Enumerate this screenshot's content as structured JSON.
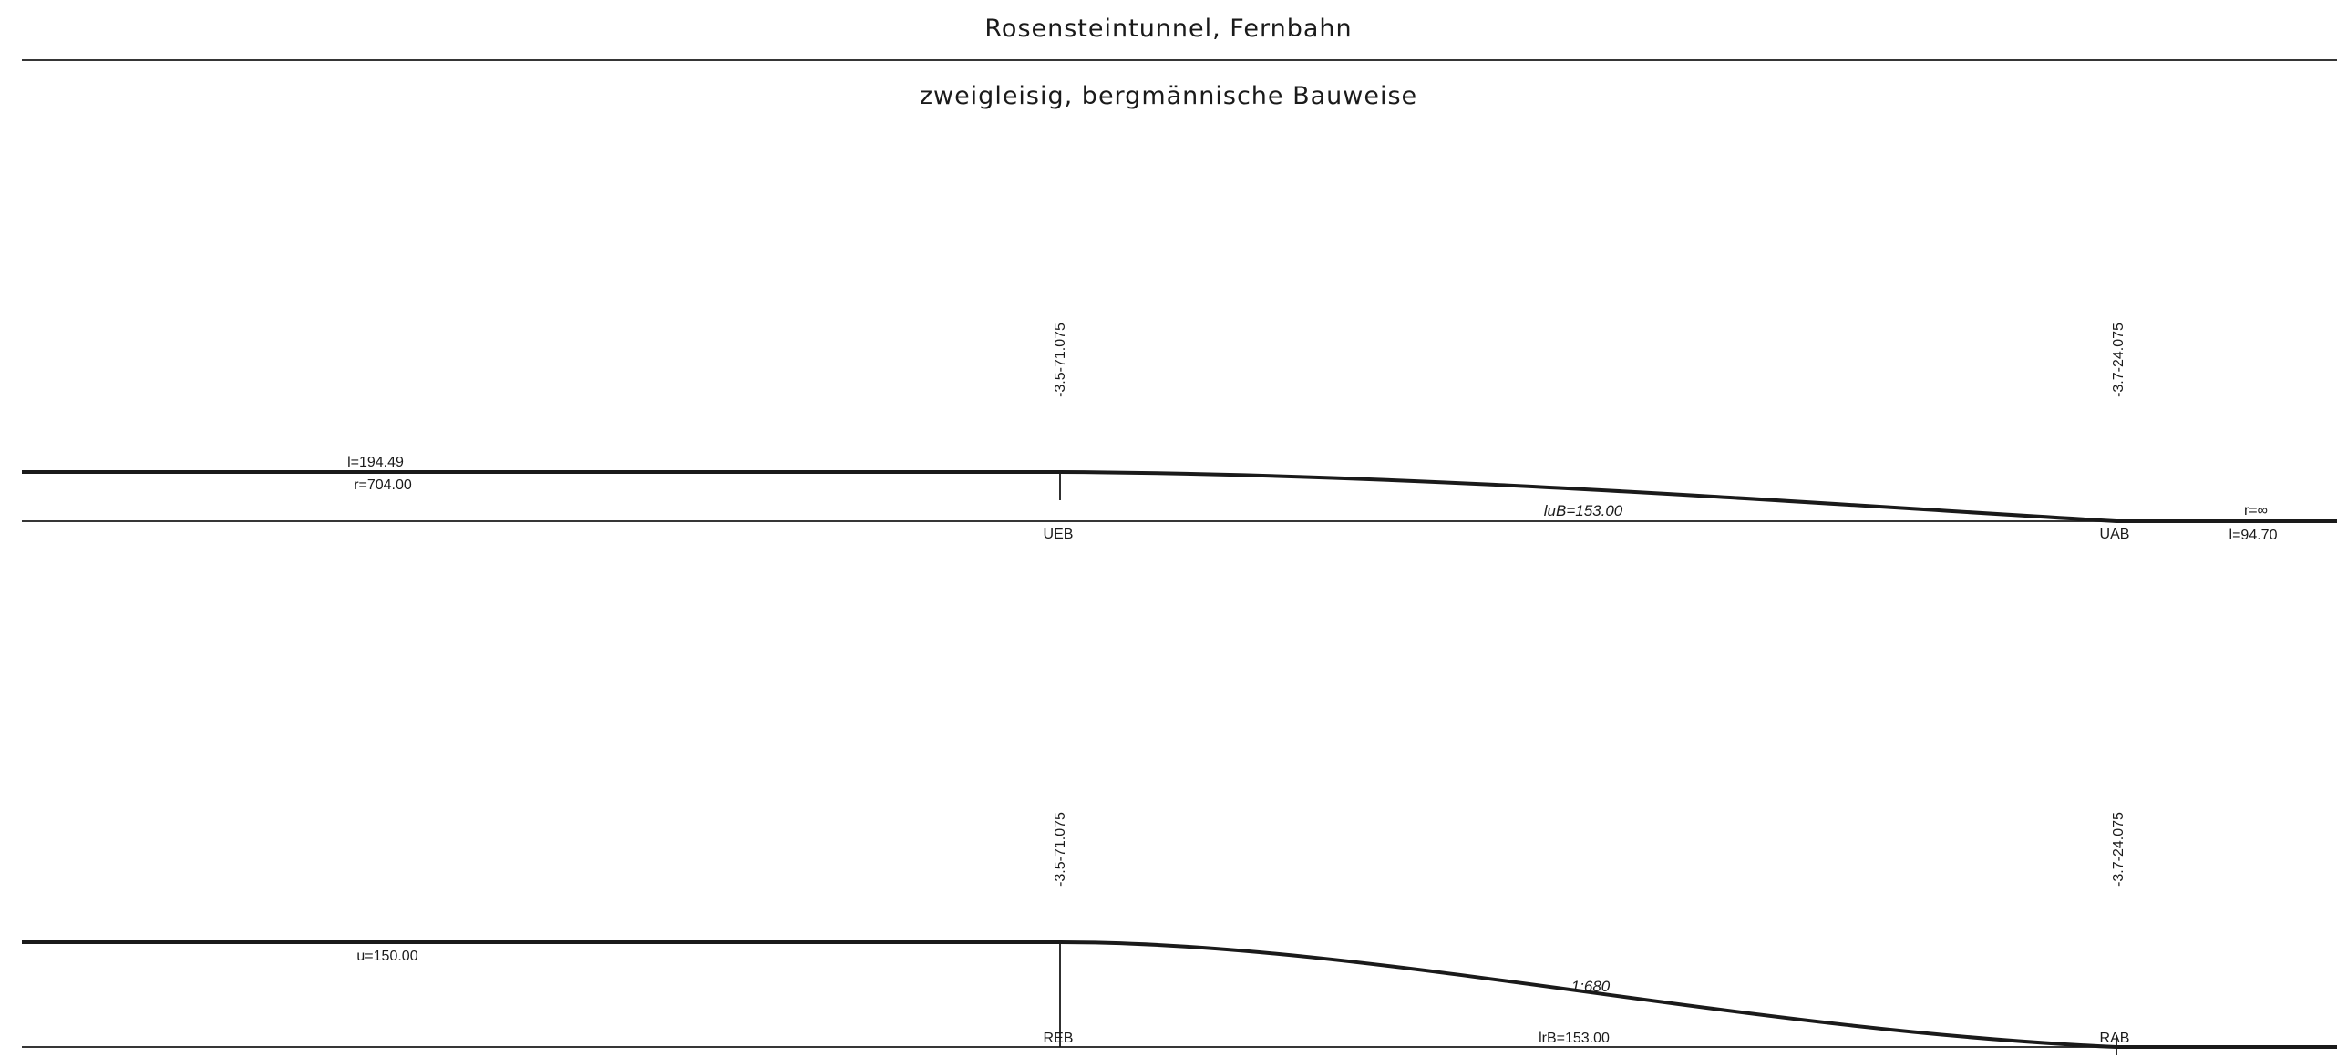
{
  "header": {
    "title": "Rosensteintunnel, Fernbahn",
    "subtitle": "zweigleisig, bergmännische Bauweise"
  },
  "upper_band": {
    "left_length": "l=194.49",
    "left_radius": "r=704.00",
    "start_station": "-3.5-71.075",
    "start_marker": "UEB",
    "transition_length": "luB=153.00",
    "end_station": "-3.7-24.075",
    "end_marker": "UAB",
    "right_radius": "r=∞",
    "right_length": "l=94.70"
  },
  "lower_band": {
    "left_superelevation": "u=150.00",
    "start_station": "-3.5-71.075",
    "start_marker": "REB",
    "ramp_slope": "1:680",
    "ramp_length": "lrB=153.00",
    "end_station": "-3.7-24.075",
    "end_marker": "RAB"
  },
  "colors": {
    "ink": "#1a1a1a",
    "background": "#ffffff"
  }
}
